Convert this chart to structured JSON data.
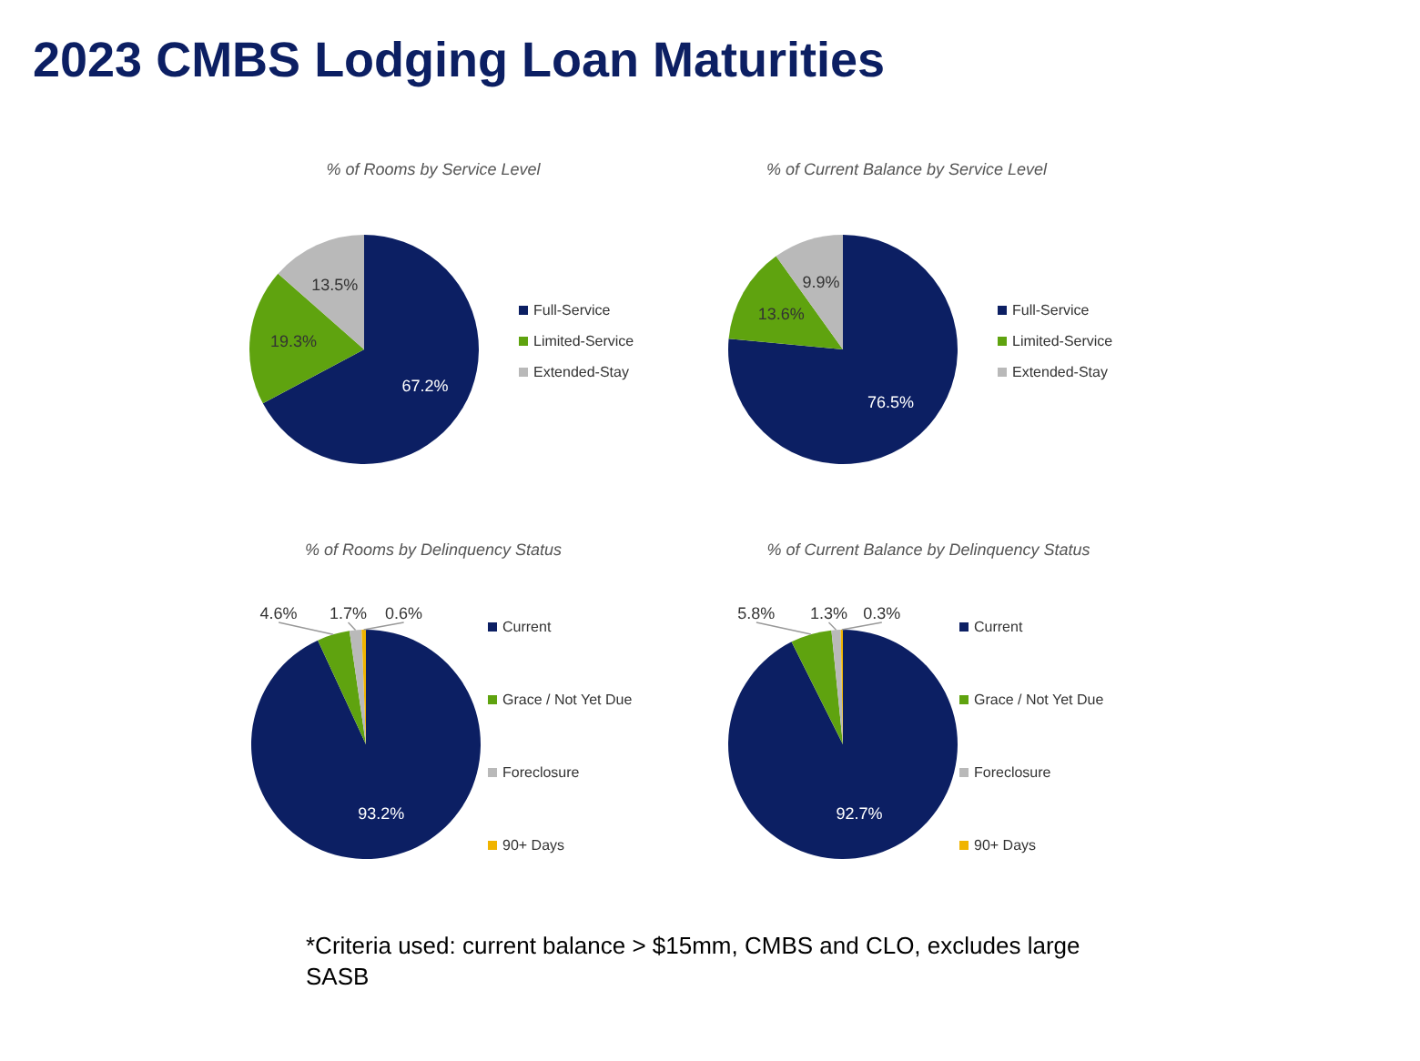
{
  "chart_data": [
    {
      "type": "other",
      "title": "2023 CMBS Lodging Loan Maturities",
      "annotations": [
        "*Criteria used: current balance > $15mm, CMBS and CLO, excludes large SASB"
      ]
    },
    {
      "type": "pie",
      "title": "% of Rooms by Service Level",
      "categories": [
        "Full-Service",
        "Limited-Service",
        "Extended-Stay"
      ],
      "values": [
        67.2,
        19.3,
        13.5
      ],
      "value_labels": [
        "67.2%",
        "19.3%",
        "13.5%"
      ],
      "colors": [
        "#0c1f63",
        "#5fa30f",
        "#b9b9b9"
      ],
      "legend": "right"
    },
    {
      "type": "pie",
      "title": "% of Current Balance by Service Level",
      "categories": [
        "Full-Service",
        "Limited-Service",
        "Extended-Stay"
      ],
      "values": [
        76.5,
        13.6,
        9.9
      ],
      "value_labels": [
        "76.5%",
        "13.6%",
        "9.9%"
      ],
      "colors": [
        "#0c1f63",
        "#5fa30f",
        "#b9b9b9"
      ],
      "legend": "right"
    },
    {
      "type": "pie",
      "title": "% of Rooms by Delinquency Status",
      "categories": [
        "Current",
        "Grace / Not Yet Due",
        "Foreclosure",
        "90+ Days"
      ],
      "values": [
        93.2,
        4.6,
        1.7,
        0.6
      ],
      "value_labels": [
        "93.2%",
        "4.6%",
        "1.7%",
        "0.6%"
      ],
      "colors": [
        "#0c1f63",
        "#5fa30f",
        "#b9b9b9",
        "#f0b400"
      ],
      "legend": "right"
    },
    {
      "type": "pie",
      "title": "% of Current Balance by Delinquency Status",
      "categories": [
        "Current",
        "Grace / Not Yet Due",
        "Foreclosure",
        "90+ Days"
      ],
      "values": [
        92.7,
        5.8,
        1.3,
        0.3
      ],
      "value_labels": [
        "92.7%",
        "5.8%",
        "1.3%",
        "0.3%"
      ],
      "colors": [
        "#0c1f63",
        "#5fa30f",
        "#b9b9b9",
        "#f0b400"
      ],
      "legend": "right"
    }
  ]
}
